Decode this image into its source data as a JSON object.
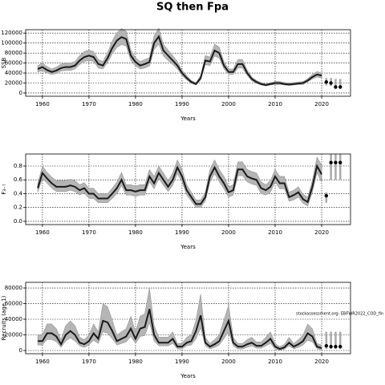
{
  "chart_data": [
    {
      "type": "line",
      "title": "SQ then Fpa",
      "ylabel": "SSB",
      "xlabel": "Years",
      "x": [
        1959,
        1960,
        1961,
        1962,
        1963,
        1964,
        1965,
        1966,
        1967,
        1968,
        1969,
        1970,
        1971,
        1972,
        1973,
        1974,
        1975,
        1976,
        1977,
        1978,
        1979,
        1980,
        1981,
        1982,
        1983,
        1984,
        1985,
        1986,
        1987,
        1988,
        1989,
        1990,
        1991,
        1992,
        1993,
        1994,
        1995,
        1996,
        1997,
        1998,
        1999,
        2000,
        2001,
        2002,
        2003,
        2004,
        2005,
        2006,
        2007,
        2008,
        2009,
        2010,
        2011,
        2012,
        2013,
        2014,
        2015,
        2016,
        2017,
        2018,
        2019,
        2020
      ],
      "values": [
        48000,
        52000,
        46000,
        42000,
        45000,
        50000,
        52000,
        52000,
        55000,
        65000,
        72000,
        75000,
        72000,
        58000,
        55000,
        70000,
        90000,
        105000,
        112000,
        108000,
        75000,
        62000,
        55000,
        58000,
        62000,
        100000,
        113000,
        85000,
        75000,
        65000,
        55000,
        40000,
        30000,
        22000,
        18000,
        30000,
        65000,
        63000,
        85000,
        80000,
        55000,
        42000,
        42000,
        58000,
        58000,
        40000,
        28000,
        22000,
        18000,
        16000,
        18000,
        20000,
        20000,
        18000,
        17000,
        18000,
        19000,
        20000,
        25000,
        32000,
        37000,
        35000
      ],
      "lower": [
        42000,
        45000,
        40000,
        37000,
        39000,
        44000,
        45000,
        45000,
        48000,
        57000,
        63000,
        65000,
        63000,
        50000,
        48000,
        61000,
        78000,
        91000,
        97000,
        94000,
        65000,
        54000,
        48000,
        50000,
        54000,
        87000,
        98000,
        74000,
        65000,
        57000,
        48000,
        35000,
        26000,
        19000,
        16000,
        26000,
        57000,
        55000,
        74000,
        70000,
        48000,
        37000,
        37000,
        50000,
        50000,
        35000,
        24000,
        19000,
        16000,
        14000,
        16000,
        17000,
        17000,
        16000,
        15000,
        16000,
        17000,
        17000,
        22000,
        28000,
        32000,
        30000
      ],
      "upper": [
        55000,
        60000,
        53000,
        48000,
        52000,
        58000,
        60000,
        60000,
        63000,
        75000,
        83000,
        86000,
        83000,
        67000,
        63000,
        81000,
        104000,
        121000,
        129000,
        124000,
        86000,
        71000,
        63000,
        67000,
        71000,
        115000,
        130000,
        98000,
        86000,
        75000,
        63000,
        46000,
        35000,
        25000,
        21000,
        35000,
        75000,
        72000,
        98000,
        92000,
        63000,
        48000,
        48000,
        67000,
        67000,
        46000,
        32000,
        25000,
        21000,
        18000,
        21000,
        23000,
        23000,
        21000,
        20000,
        21000,
        22000,
        23000,
        29000,
        37000,
        43000,
        40000
      ],
      "forecast": {
        "x": [
          2021,
          2022,
          2023,
          2024
        ],
        "values": [
          22000,
          20000,
          12000,
          12000
        ],
        "lower": [
          15000,
          14000,
          8000,
          8000
        ],
        "upper": [
          30000,
          30000,
          28000,
          28000
        ]
      },
      "xlim": [
        1956.4,
        2026.2
      ],
      "xticks": [
        1960,
        1970,
        1980,
        1990,
        2000,
        2010,
        2020
      ],
      "ylim": [
        -6500,
        126800
      ],
      "yticks": [
        0,
        20000,
        40000,
        60000,
        80000,
        100000,
        120000
      ],
      "grid": true,
      "color": "#1a1a1a",
      "band_color": "#b5b5b5",
      "forecast_color": "#000000"
    },
    {
      "type": "line",
      "ylabel": "F₃₋₇",
      "xlabel": "Years",
      "x": [
        1959,
        1960,
        1961,
        1962,
        1963,
        1964,
        1965,
        1966,
        1967,
        1968,
        1969,
        1970,
        1971,
        1972,
        1973,
        1974,
        1975,
        1976,
        1977,
        1978,
        1979,
        1980,
        1981,
        1982,
        1983,
        1984,
        1985,
        1986,
        1987,
        1988,
        1989,
        1990,
        1991,
        1992,
        1993,
        1994,
        1995,
        1996,
        1997,
        1998,
        1999,
        2000,
        2001,
        2002,
        2003,
        2004,
        2005,
        2006,
        2007,
        2008,
        2009,
        2010,
        2011,
        2012,
        2013,
        2014,
        2015,
        2016,
        2017,
        2018,
        2019,
        2020
      ],
      "values": [
        0.48,
        0.7,
        0.62,
        0.55,
        0.5,
        0.5,
        0.5,
        0.52,
        0.5,
        0.45,
        0.48,
        0.4,
        0.4,
        0.33,
        0.33,
        0.33,
        0.4,
        0.48,
        0.6,
        0.45,
        0.45,
        0.43,
        0.45,
        0.45,
        0.65,
        0.55,
        0.7,
        0.6,
        0.5,
        0.6,
        0.78,
        0.65,
        0.45,
        0.35,
        0.25,
        0.25,
        0.35,
        0.65,
        0.78,
        0.65,
        0.55,
        0.42,
        0.45,
        0.75,
        0.75,
        0.65,
        0.62,
        0.6,
        0.48,
        0.45,
        0.5,
        0.65,
        0.55,
        0.55,
        0.35,
        0.38,
        0.42,
        0.32,
        0.28,
        0.5,
        0.8,
        0.68
      ],
      "lower": [
        0.42,
        0.62,
        0.55,
        0.48,
        0.43,
        0.43,
        0.43,
        0.45,
        0.43,
        0.38,
        0.41,
        0.33,
        0.33,
        0.27,
        0.27,
        0.27,
        0.33,
        0.4,
        0.52,
        0.38,
        0.38,
        0.36,
        0.38,
        0.38,
        0.57,
        0.47,
        0.62,
        0.52,
        0.43,
        0.52,
        0.69,
        0.57,
        0.38,
        0.29,
        0.2,
        0.2,
        0.29,
        0.57,
        0.69,
        0.57,
        0.47,
        0.35,
        0.38,
        0.66,
        0.66,
        0.57,
        0.54,
        0.52,
        0.4,
        0.38,
        0.42,
        0.57,
        0.47,
        0.47,
        0.29,
        0.31,
        0.35,
        0.26,
        0.22,
        0.42,
        0.7,
        0.57
      ],
      "upper": [
        0.55,
        0.8,
        0.71,
        0.64,
        0.59,
        0.59,
        0.59,
        0.61,
        0.59,
        0.53,
        0.56,
        0.48,
        0.48,
        0.4,
        0.4,
        0.4,
        0.48,
        0.57,
        0.71,
        0.53,
        0.53,
        0.51,
        0.53,
        0.53,
        0.75,
        0.65,
        0.8,
        0.7,
        0.59,
        0.7,
        0.89,
        0.75,
        0.53,
        0.42,
        0.31,
        0.31,
        0.42,
        0.75,
        0.89,
        0.75,
        0.65,
        0.5,
        0.53,
        0.86,
        0.86,
        0.75,
        0.72,
        0.7,
        0.57,
        0.53,
        0.59,
        0.75,
        0.65,
        0.65,
        0.42,
        0.45,
        0.5,
        0.39,
        0.35,
        0.59,
        0.93,
        0.81
      ],
      "forecast": {
        "x": [
          2021,
          2022,
          2023,
          2024
        ],
        "values": [
          0.37,
          0.85,
          0.85,
          0.85
        ],
        "lower": [
          0.27,
          0.6,
          0.6,
          0.6
        ],
        "upper": [
          0.42,
          0.97,
          0.97,
          0.97
        ]
      },
      "xlim": [
        1956.4,
        2026.2
      ],
      "xticks": [
        1960,
        1970,
        1980,
        1990,
        2000,
        2010,
        2020
      ],
      "ylim": [
        -0.047,
        0.974
      ],
      "yticks": [
        {
          "value": 0,
          "label": "0.0"
        },
        0.2,
        0.4,
        0.6,
        0.8
      ],
      "grid": true,
      "color": "#1a1a1a",
      "band_color": "#b5b5b5",
      "forecast_color": "#000000"
    },
    {
      "type": "line",
      "ylabel": "Recruits (age 1)",
      "xlabel": "Years",
      "annotation": "stockassessment.org: EBFWR2022_COD_fin",
      "x": [
        1959,
        1960,
        1961,
        1962,
        1963,
        1964,
        1965,
        1966,
        1967,
        1968,
        1969,
        1970,
        1971,
        1972,
        1973,
        1974,
        1975,
        1976,
        1977,
        1978,
        1979,
        1980,
        1981,
        1982,
        1983,
        1984,
        1985,
        1986,
        1987,
        1988,
        1989,
        1990,
        1991,
        1992,
        1993,
        1994,
        1995,
        1996,
        1997,
        1998,
        1999,
        2000,
        2001,
        2002,
        2003,
        2004,
        2005,
        2006,
        2007,
        2008,
        2009,
        2010,
        2011,
        2012,
        2013,
        2014,
        2015,
        2016,
        2017,
        2018,
        2019,
        2020
      ],
      "values": [
        12000,
        12000,
        22000,
        22000,
        18000,
        8000,
        20000,
        25000,
        20000,
        10000,
        8000,
        12000,
        22000,
        15000,
        38000,
        36000,
        25000,
        12000,
        15000,
        18000,
        28000,
        15000,
        28000,
        30000,
        53000,
        20000,
        10000,
        10000,
        10000,
        15000,
        5000,
        5000,
        10000,
        12000,
        25000,
        45000,
        10000,
        5000,
        8000,
        12000,
        25000,
        38000,
        10000,
        5000,
        5000,
        8000,
        10000,
        6000,
        6000,
        10000,
        15000,
        5000,
        2000,
        4000,
        10000,
        5000,
        8000,
        12000,
        22000,
        18000,
        5000,
        3000
      ],
      "lower": [
        7000,
        7000,
        14000,
        14000,
        11000,
        4000,
        12000,
        16000,
        12000,
        6000,
        4000,
        7000,
        13000,
        9000,
        24000,
        22000,
        15000,
        7000,
        9000,
        11000,
        18000,
        9000,
        18000,
        19000,
        36000,
        12000,
        6000,
        6000,
        6000,
        9000,
        2000,
        2000,
        6000,
        7000,
        15000,
        29000,
        6000,
        2000,
        4000,
        7000,
        15000,
        24000,
        6000,
        2000,
        2000,
        4000,
        6000,
        3000,
        3000,
        6000,
        9000,
        2000,
        500,
        1500,
        6000,
        2000,
        4000,
        7000,
        13000,
        11000,
        2000,
        1000
      ],
      "upper": [
        20000,
        20000,
        34000,
        34000,
        28000,
        14000,
        32000,
        38000,
        32000,
        17000,
        14000,
        20000,
        34000,
        24000,
        60000,
        56000,
        39000,
        20000,
        24000,
        28000,
        44000,
        24000,
        44000,
        47000,
        80000,
        32000,
        17000,
        17000,
        17000,
        24000,
        9000,
        9000,
        17000,
        20000,
        39000,
        72000,
        17000,
        9000,
        14000,
        20000,
        39000,
        58000,
        17000,
        9000,
        9000,
        14000,
        17000,
        11000,
        11000,
        17000,
        24000,
        9000,
        5000,
        8000,
        17000,
        9000,
        14000,
        20000,
        34000,
        28000,
        9000,
        7000
      ],
      "forecast": {
        "x": [
          2021,
          2022,
          2023,
          2024
        ],
        "values": [
          6000,
          5000,
          5000,
          5000
        ],
        "lower": [
          2000,
          2000,
          2000,
          2000
        ],
        "upper": [
          24000,
          24000,
          24000,
          24000
        ]
      },
      "xlim": [
        1956.4,
        2026.2
      ],
      "xticks": [
        1960,
        1970,
        1980,
        1990,
        2000,
        2010,
        2020
      ],
      "ylim": [
        -4100,
        87200
      ],
      "yticks": [
        0,
        20000,
        40000,
        60000,
        80000
      ],
      "grid": true,
      "color": "#1a1a1a",
      "band_color": "#b5b5b5",
      "forecast_color": "#000000"
    }
  ]
}
